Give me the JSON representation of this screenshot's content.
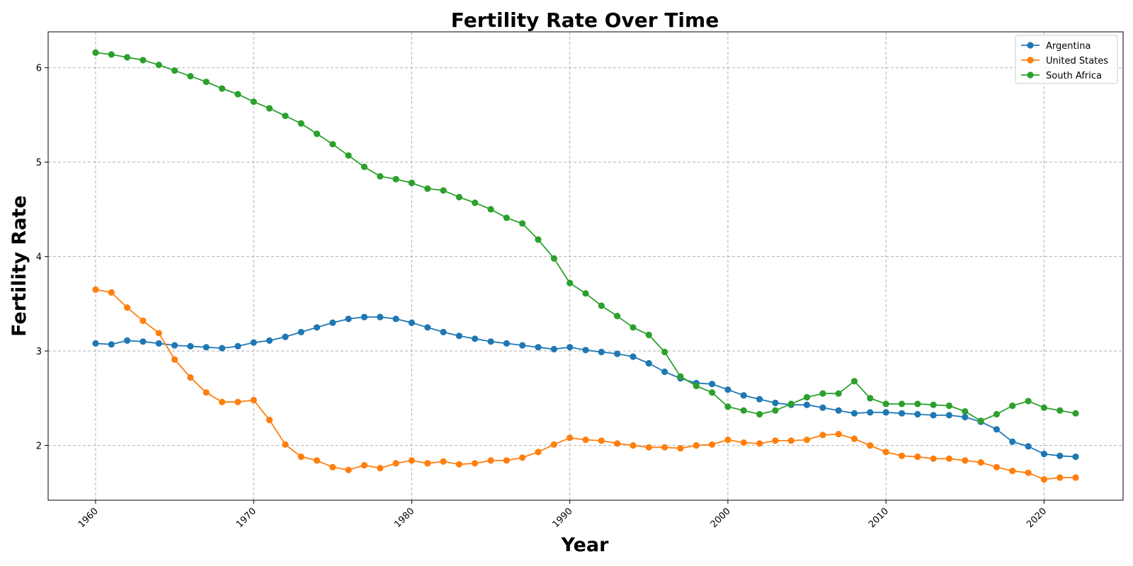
{
  "chart_data": {
    "type": "line",
    "title": "Fertility Rate Over Time",
    "xlabel": "Year",
    "ylabel": "Fertility Rate",
    "xlim": [
      1957,
      2025
    ],
    "ylim": [
      1.42,
      6.38
    ],
    "xticks": [
      1960,
      1970,
      1980,
      1990,
      2000,
      2010,
      2020
    ],
    "yticks": [
      2,
      3,
      4,
      5,
      6
    ],
    "grid": true,
    "legend_position": "top-right",
    "x": [
      1960,
      1961,
      1962,
      1963,
      1964,
      1965,
      1966,
      1967,
      1968,
      1969,
      1970,
      1971,
      1972,
      1973,
      1974,
      1975,
      1976,
      1977,
      1978,
      1979,
      1980,
      1981,
      1982,
      1983,
      1984,
      1985,
      1986,
      1987,
      1988,
      1989,
      1990,
      1991,
      1992,
      1993,
      1994,
      1995,
      1996,
      1997,
      1998,
      1999,
      2000,
      2001,
      2002,
      2003,
      2004,
      2005,
      2006,
      2007,
      2008,
      2009,
      2010,
      2011,
      2012,
      2013,
      2014,
      2015,
      2016,
      2017,
      2018,
      2019,
      2020,
      2021,
      2022
    ],
    "series": [
      {
        "name": "Argentina",
        "color": "#1f77b4",
        "values": [
          3.08,
          3.07,
          3.11,
          3.1,
          3.08,
          3.06,
          3.05,
          3.04,
          3.03,
          3.05,
          3.09,
          3.11,
          3.15,
          3.2,
          3.25,
          3.3,
          3.34,
          3.36,
          3.36,
          3.34,
          3.3,
          3.25,
          3.2,
          3.16,
          3.13,
          3.1,
          3.08,
          3.06,
          3.04,
          3.02,
          3.04,
          3.01,
          2.99,
          2.97,
          2.94,
          2.87,
          2.78,
          2.71,
          2.66,
          2.65,
          2.59,
          2.53,
          2.49,
          2.45,
          2.43,
          2.43,
          2.4,
          2.37,
          2.34,
          2.35,
          2.35,
          2.34,
          2.33,
          2.32,
          2.32,
          2.3,
          2.25,
          2.17,
          2.04,
          1.99,
          1.91,
          1.89,
          1.88
        ]
      },
      {
        "name": "United States",
        "color": "#ff7f0e",
        "values": [
          3.65,
          3.62,
          3.46,
          3.32,
          3.19,
          2.91,
          2.72,
          2.56,
          2.46,
          2.46,
          2.48,
          2.27,
          2.01,
          1.88,
          1.84,
          1.77,
          1.74,
          1.79,
          1.76,
          1.81,
          1.84,
          1.81,
          1.83,
          1.8,
          1.81,
          1.84,
          1.84,
          1.87,
          1.93,
          2.01,
          2.08,
          2.06,
          2.05,
          2.02,
          2.0,
          1.98,
          1.98,
          1.97,
          2.0,
          2.01,
          2.06,
          2.03,
          2.02,
          2.05,
          2.05,
          2.06,
          2.11,
          2.12,
          2.07,
          2.0,
          1.93,
          1.89,
          1.88,
          1.86,
          1.86,
          1.84,
          1.82,
          1.77,
          1.73,
          1.71,
          1.64,
          1.66,
          1.66
        ]
      },
      {
        "name": "South Africa",
        "color": "#2ca02c",
        "values": [
          6.16,
          6.14,
          6.11,
          6.08,
          6.03,
          5.97,
          5.91,
          5.85,
          5.78,
          5.72,
          5.64,
          5.57,
          5.49,
          5.41,
          5.3,
          5.19,
          5.07,
          4.95,
          4.85,
          4.82,
          4.78,
          4.72,
          4.7,
          4.63,
          4.57,
          4.5,
          4.41,
          4.35,
          4.18,
          3.98,
          3.72,
          3.61,
          3.48,
          3.37,
          3.25,
          3.17,
          2.99,
          2.73,
          2.63,
          2.56,
          2.41,
          2.37,
          2.33,
          2.37,
          2.44,
          2.51,
          2.55,
          2.55,
          2.68,
          2.5,
          2.44,
          2.44,
          2.44,
          2.43,
          2.42,
          2.36,
          2.26,
          2.33,
          2.42,
          2.47,
          2.4,
          2.37,
          2.34
        ]
      }
    ]
  }
}
